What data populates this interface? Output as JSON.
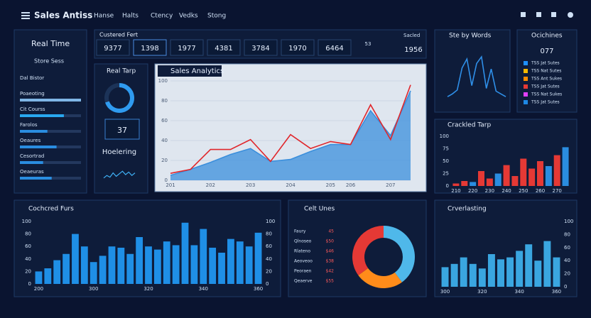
{
  "header": {
    "title": "Sales Antiss",
    "nav": [
      "Hanse",
      "Halts",
      "Ctency",
      "Vedks",
      "Stong"
    ]
  },
  "sidebar": {
    "title": "Real Time",
    "subtitle": "Store Sess",
    "items": [
      {
        "label": "Dal Bistor"
      },
      {
        "label": "Poaeoting",
        "value": 100,
        "color": "#7fb6e6"
      },
      {
        "label": "Cit Courss",
        "value": 72,
        "color": "#29a8ef"
      },
      {
        "label": "Farolos",
        "value": 45,
        "color": "#2a8de0"
      },
      {
        "label": "Oeaures",
        "value": 60,
        "color": "#2a8de0"
      },
      {
        "label": "Cesortrad",
        "value": 38,
        "color": "#2a8de0"
      },
      {
        "label": "Oeaeuras",
        "value": 52,
        "color": "#2a8de0"
      }
    ]
  },
  "kpi": {
    "title": "Custered Fert",
    "note": "Sacled",
    "tiles": [
      "9377",
      "1398",
      "1977",
      "4381",
      "3784",
      "1970",
      "6464"
    ],
    "small": "53",
    "last": "1956"
  },
  "realtime": {
    "title": "Real Tarp",
    "gauge": 70,
    "number": "37",
    "label": "Hoelering",
    "spark": [
      30,
      45,
      35,
      60,
      40,
      55,
      70,
      50,
      65,
      45,
      60
    ]
  },
  "charts": {
    "sales": {
      "type": "line",
      "title": "Sales Analytics",
      "ylim": [
        0,
        100
      ],
      "yticks": [
        0,
        20,
        40,
        60,
        80,
        100
      ],
      "categories": [
        "201",
        null,
        "202",
        null,
        "203",
        null,
        "204",
        null,
        "205",
        "206",
        null,
        "207",
        null
      ],
      "series": [
        {
          "color": "#3b8fdc",
          "area": true,
          "values": [
            5,
            11,
            18,
            26,
            32,
            19,
            21,
            29,
            36,
            36,
            70,
            45,
            90
          ]
        },
        {
          "color": "#e0262b",
          "values": [
            7,
            11,
            31,
            31,
            41,
            19,
            46,
            32,
            39,
            36,
            76,
            41,
            96
          ]
        }
      ]
    },
    "words": {
      "type": "line",
      "title": "Ste by Words",
      "ylim": [
        0,
        100
      ],
      "color": "#2f8fe8",
      "values": [
        10,
        15,
        22,
        62,
        78,
        30,
        70,
        82,
        25,
        60,
        20,
        15,
        10
      ]
    },
    "machines": {
      "type": "legend",
      "title": "Ocichines",
      "value": "077",
      "items": [
        {
          "label": "TSS Jat Sutes",
          "color": "#1e90ff"
        },
        {
          "label": "TSS Nat Sutes",
          "color": "#f5b800"
        },
        {
          "label": "TSS Ant Sukes",
          "color": "#ff8c00"
        },
        {
          "label": "TSS Jat Sutes",
          "color": "#e53935"
        },
        {
          "label": "TSS Nat Sukes",
          "color": "#e040fb"
        },
        {
          "label": "TSS Jat Sutes",
          "color": "#1e88e5"
        }
      ]
    },
    "tarp": {
      "type": "bar",
      "title": "Crackled Tarp",
      "ylim": [
        0,
        100
      ],
      "yticks": [
        0,
        25,
        50,
        75,
        100
      ],
      "categories": [
        "210",
        null,
        "220",
        null,
        "230",
        null,
        "240",
        null,
        "250",
        null,
        "260",
        null,
        "270",
        null
      ],
      "values": [
        5,
        10,
        8,
        30,
        15,
        25,
        42,
        20,
        55,
        35,
        50,
        40,
        62,
        78
      ],
      "colors": [
        "#e53935",
        "#e53935",
        "#2a8de0",
        "#e53935",
        "#e53935",
        "#2a8de0",
        "#e53935",
        "#e53935",
        "#e53935",
        "#e53935",
        "#e53935",
        "#2a8de0",
        "#e53935",
        "#2a8de0"
      ]
    },
    "furs": {
      "type": "bar",
      "title": "Cochcred Furs",
      "ylim": [
        0,
        100
      ],
      "yticks": [
        0,
        20,
        40,
        60,
        80,
        100
      ],
      "mirror_ticks": true,
      "color": "#1f8fe6",
      "categories": [
        "200",
        null,
        null,
        null,
        null,
        null,
        "300",
        null,
        null,
        null,
        null,
        null,
        "320",
        null,
        null,
        null,
        null,
        null,
        "340",
        null,
        null,
        null,
        null,
        null,
        "360"
      ],
      "values": [
        20,
        25,
        38,
        48,
        80,
        60,
        35,
        45,
        60,
        58,
        48,
        75,
        60,
        55,
        68,
        62,
        98,
        62,
        88,
        58,
        50,
        72,
        68,
        60,
        82
      ]
    },
    "units": {
      "type": "donut",
      "title": "Celt Unes",
      "rows": [
        {
          "label": "Faury",
          "value": "45"
        },
        {
          "label": "Qlnoseo",
          "value": "$50"
        },
        {
          "label": "Rlateno",
          "value": "$46"
        },
        {
          "label": "Aeoveoo",
          "value": "$38"
        },
        {
          "label": "Peoraen",
          "value": "$42"
        },
        {
          "label": "Qeaerve",
          "value": "$55"
        }
      ],
      "values": [
        40,
        25,
        35
      ],
      "colors": [
        "#4fb8ea",
        "#ff8c1a",
        "#e53935"
      ]
    },
    "lasting": {
      "type": "bar",
      "title": "Crverlasting",
      "ylim": [
        0,
        100
      ],
      "yticks": [
        0,
        20,
        40,
        60,
        80,
        100
      ],
      "right_ticks": true,
      "color": "#3aa6e0",
      "categories": [
        "300",
        null,
        null,
        null,
        "320",
        null,
        null,
        null,
        "340",
        null,
        null,
        null,
        "360"
      ],
      "values": [
        30,
        35,
        45,
        35,
        28,
        50,
        42,
        45,
        55,
        65,
        40,
        70,
        45
      ]
    }
  }
}
